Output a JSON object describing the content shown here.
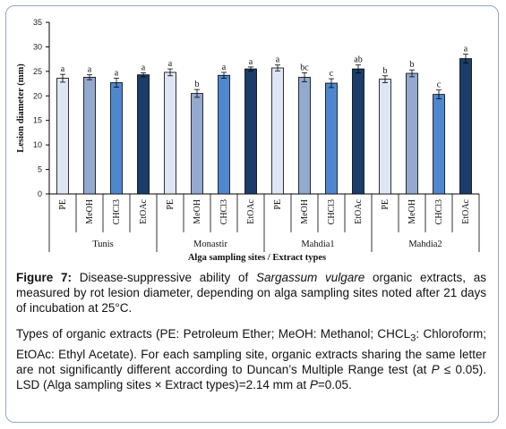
{
  "figure": {
    "number_label": "Figure 7:",
    "caption_parts": [
      "Disease-suppressive ability of ",
      "Sargassum vulgare",
      " organic extracts, as measured by rot lesion diameter, depending on alga sampling sites noted after 21 days of incubation at 25°C."
    ],
    "note_parts": [
      "Types of organic extracts (PE: Petroleum Ether; MeOH: Methanol; CHCL",
      "3",
      ": Chloroform; EtOAc: Ethyl Acetate). For each sampling site, organic extracts sharing the same letter are not significantly different according to Duncan’s Multiple Range test (at ",
      "P",
      " ≤ 0.05). LSD (Alga sampling sites × Extract types)=2.14 mm at ",
      "P",
      "=0.05."
    ]
  },
  "chart_data": {
    "type": "bar",
    "ylabel": "Lesion diameter (mm)",
    "xlabel": "Alga sampling sites / Extract types",
    "ylim": [
      0,
      35
    ],
    "yticks": [
      0,
      5,
      10,
      15,
      20,
      25,
      30,
      35
    ],
    "grid": false,
    "extract_colors": {
      "PE": "#dfe6f3",
      "MeOH": "#93a9cf",
      "CHCl3": "#4f87cf",
      "EtOAc": "#1c3d6a"
    },
    "groups": [
      {
        "site": "Tunis",
        "bars": [
          {
            "extract": "PE",
            "value": 23.6,
            "error": 0.8,
            "letter": "a"
          },
          {
            "extract": "MeOH",
            "value": 23.8,
            "error": 0.5,
            "letter": "a"
          },
          {
            "extract": "CHCl3",
            "value": 22.7,
            "error": 0.9,
            "letter": "a"
          },
          {
            "extract": "EtOAc",
            "value": 24.3,
            "error": 0.4,
            "letter": "a"
          }
        ]
      },
      {
        "site": "Monastir",
        "bars": [
          {
            "extract": "PE",
            "value": 24.8,
            "error": 0.7,
            "letter": "a"
          },
          {
            "extract": "MeOH",
            "value": 20.5,
            "error": 0.8,
            "letter": "b"
          },
          {
            "extract": "CHCl3",
            "value": 24.2,
            "error": 0.6,
            "letter": "a"
          },
          {
            "extract": "EtOAc",
            "value": 25.5,
            "error": 0.4,
            "letter": "a"
          }
        ]
      },
      {
        "site": "Mahdia1",
        "bars": [
          {
            "extract": "PE",
            "value": 25.7,
            "error": 0.6,
            "letter": "a"
          },
          {
            "extract": "MeOH",
            "value": 23.8,
            "error": 0.9,
            "letter": "bc"
          },
          {
            "extract": "CHCl3",
            "value": 22.6,
            "error": 0.9,
            "letter": "c"
          },
          {
            "extract": "EtOAc",
            "value": 25.5,
            "error": 0.8,
            "letter": "ab"
          }
        ]
      },
      {
        "site": "Mahdia2",
        "bars": [
          {
            "extract": "PE",
            "value": 23.4,
            "error": 0.7,
            "letter": "b"
          },
          {
            "extract": "MeOH",
            "value": 24.6,
            "error": 0.7,
            "letter": "b"
          },
          {
            "extract": "CHCl3",
            "value": 20.3,
            "error": 0.9,
            "letter": "c"
          },
          {
            "extract": "EtOAc",
            "value": 27.6,
            "error": 0.9,
            "letter": "a"
          }
        ]
      }
    ]
  }
}
